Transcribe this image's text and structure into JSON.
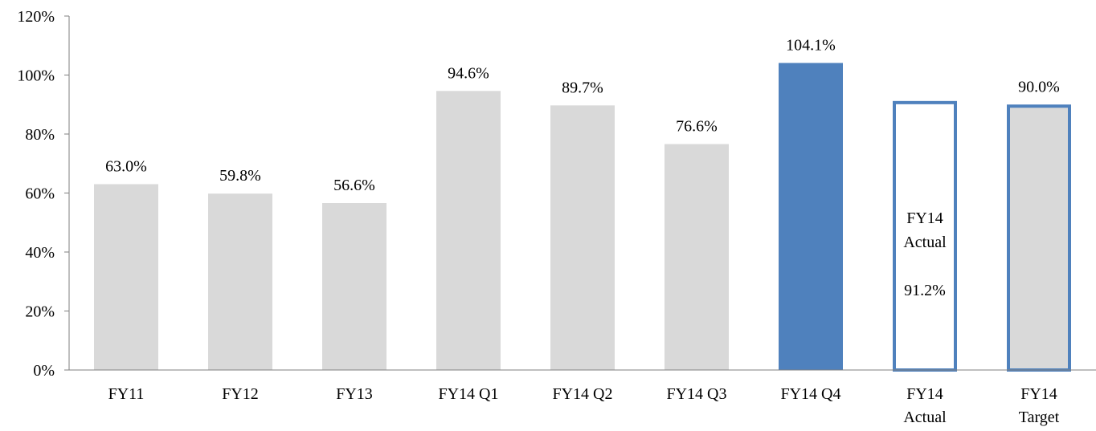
{
  "chart_data": {
    "type": "bar",
    "title": "",
    "xlabel": "",
    "ylabel": "",
    "ylim": [
      0,
      120
    ],
    "yticks": [
      0,
      20,
      40,
      60,
      80,
      100,
      120
    ],
    "ytick_labels": [
      "0%",
      "20%",
      "40%",
      "60%",
      "80%",
      "100%",
      "120%"
    ],
    "grid": false,
    "legend": "none",
    "colors": {
      "default_fill": "#D9D9D9",
      "highlight_fill": "#4F81BD",
      "outline": "#4F81BD",
      "axis": "#7F7F7F"
    },
    "bars": [
      {
        "category": [
          "FY11"
        ],
        "value": 63.0,
        "label": "63.0%",
        "style": "plain"
      },
      {
        "category": [
          "FY12"
        ],
        "value": 59.8,
        "label": "59.8%",
        "style": "plain"
      },
      {
        "category": [
          "FY13"
        ],
        "value": 56.6,
        "label": "56.6%",
        "style": "plain"
      },
      {
        "category": [
          "FY14 Q1"
        ],
        "value": 94.6,
        "label": "94.6%",
        "style": "plain"
      },
      {
        "category": [
          "FY14 Q2"
        ],
        "value": 89.7,
        "label": "89.7%",
        "style": "plain"
      },
      {
        "category": [
          "FY14 Q3"
        ],
        "value": 76.6,
        "label": "76.6%",
        "style": "plain"
      },
      {
        "category": [
          "FY14 Q4"
        ],
        "value": 104.1,
        "label": "104.1%",
        "style": "highlight"
      },
      {
        "category": [
          "FY14",
          "Actual"
        ],
        "value": 91.2,
        "label": "",
        "style": "outline",
        "inner_label": [
          "FY14",
          "Actual",
          "",
          "91.2%"
        ]
      },
      {
        "category": [
          "FY14",
          "Target"
        ],
        "value": 90.0,
        "label": "90.0%",
        "style": "outline-filled"
      }
    ]
  }
}
